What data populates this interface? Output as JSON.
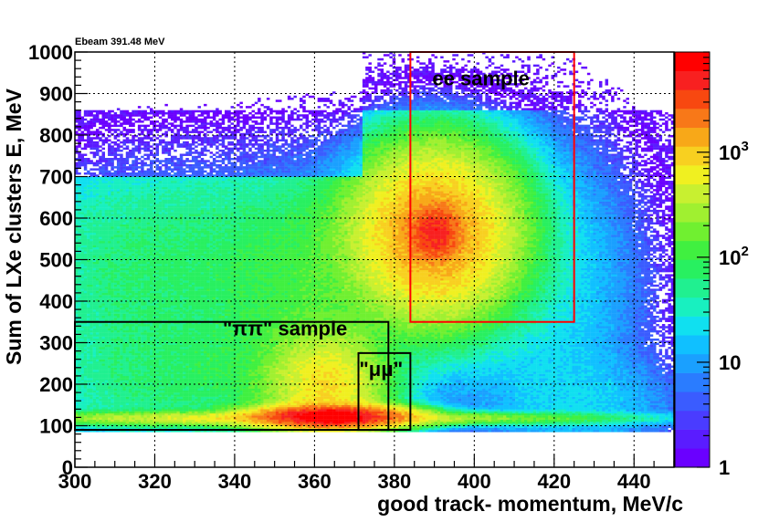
{
  "chart_data": {
    "type": "heatmap",
    "title": "Ebeam 391.48 MeV",
    "xlabel": "good track- momentum, MeV/c",
    "ylabel": "Sum of LXe clusters E, MeV",
    "xlim": [
      300,
      450
    ],
    "ylim": [
      0,
      1000
    ],
    "x_ticks": [
      300,
      320,
      340,
      360,
      380,
      400,
      420,
      440
    ],
    "y_ticks": [
      0,
      100,
      200,
      300,
      400,
      500,
      600,
      700,
      800,
      900,
      1000
    ],
    "grid": true,
    "z_scale": "log",
    "z_range": [
      1,
      9000
    ],
    "colorbar_ticks": [
      {
        "value": 1,
        "label": "1"
      },
      {
        "value": 10,
        "label": "10"
      },
      {
        "value": 100,
        "label": "10",
        "exponent": "2"
      },
      {
        "value": 1000,
        "label": "10",
        "exponent": "3"
      }
    ],
    "colorbar_colors": [
      "#6a00ff",
      "#5a1cff",
      "#4a3cff",
      "#3a5cff",
      "#2a7cff",
      "#1aa0ff",
      "#10c0ff",
      "#10e0f0",
      "#18f0c0",
      "#20f090",
      "#28f060",
      "#40f040",
      "#70f030",
      "#a0f030",
      "#c8f030",
      "#f0f020",
      "#f8d020",
      "#f8a818",
      "#f87818",
      "#f84810",
      "#f82020",
      "#ff0000"
    ],
    "density_blobs": [
      {
        "x": 390,
        "y": 565,
        "sx": 11,
        "sy": 110,
        "peak": 1600
      },
      {
        "x": 390,
        "y": 565,
        "sx": 3.5,
        "sy": 35,
        "peak": 3500
      },
      {
        "x": 364,
        "y": 122,
        "sx": 10,
        "sy": 14,
        "peak": 6500
      },
      {
        "x": 364,
        "y": 122,
        "sx": 3.5,
        "sy": 8,
        "peak": 9000
      },
      {
        "x": 363,
        "y": 190,
        "sx": 8,
        "sy": 75,
        "peak": 700
      },
      {
        "x": 340,
        "y": 118,
        "sx": 30,
        "sy": 9,
        "peak": 500
      },
      {
        "x": 395,
        "y": 118,
        "sx": 25,
        "sy": 8,
        "peak": 180
      },
      {
        "x": 322,
        "y": 480,
        "sx": 24,
        "sy": 170,
        "peak": 70
      },
      {
        "x": 360,
        "y": 420,
        "sx": 14,
        "sy": 190,
        "peak": 90
      },
      {
        "x": 330,
        "y": 200,
        "sx": 25,
        "sy": 90,
        "peak": 55
      },
      {
        "x": 418,
        "y": 420,
        "sx": 14,
        "sy": 220,
        "peak": 22
      },
      {
        "x": 430,
        "y": 150,
        "sx": 15,
        "sy": 70,
        "peak": 12
      }
    ],
    "regions": [
      {
        "name": "ee sample",
        "label": "ee sample",
        "x0": 384,
        "x1": 425,
        "y0": 350,
        "y1": 1000,
        "color": "#ff0000"
      },
      {
        "name": "pi-pi sample",
        "label": "\"ππ\" sample",
        "x0": 300,
        "x1": 378.5,
        "y0": 90,
        "y1": 350,
        "color": "#000000"
      },
      {
        "name": "mu-mu sample",
        "label": "\"μμ\"",
        "x0": 371,
        "x1": 384,
        "y0": 90,
        "y1": 275,
        "color": "#000000"
      }
    ]
  }
}
